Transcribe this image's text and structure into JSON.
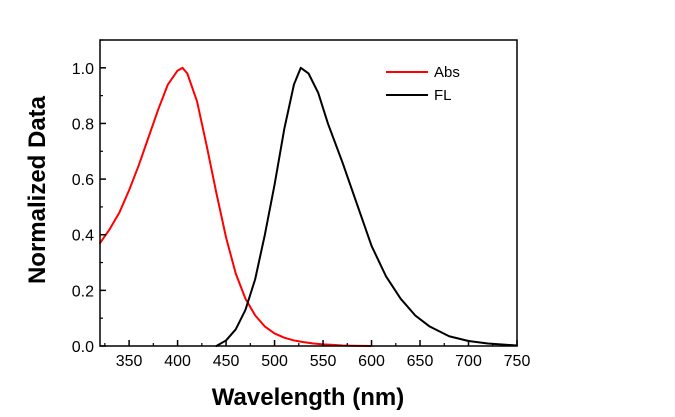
{
  "chart_data": {
    "type": "line",
    "xlabel": "Wavelength (nm)",
    "ylabel": "Normalized Data",
    "xlim": [
      320,
      750
    ],
    "ylim": [
      0.0,
      1.1
    ],
    "x_ticks": [
      350,
      400,
      450,
      500,
      550,
      600,
      650,
      700,
      750
    ],
    "x_tick_labels": [
      "350",
      "400",
      "450",
      "500",
      "550",
      "600",
      "650",
      "700",
      "750"
    ],
    "y_ticks": [
      0.0,
      0.2,
      0.4,
      0.6,
      0.8,
      1.0
    ],
    "y_tick_labels": [
      "0.0",
      "0.2",
      "0.4",
      "0.6",
      "0.8",
      "1.0"
    ],
    "grid": false,
    "legend_position": "top-right",
    "series": [
      {
        "name": "Abs",
        "color": "#ff0000",
        "points": [
          [
            320,
            0.37
          ],
          [
            330,
            0.42
          ],
          [
            340,
            0.48
          ],
          [
            350,
            0.56
          ],
          [
            360,
            0.65
          ],
          [
            370,
            0.75
          ],
          [
            380,
            0.85
          ],
          [
            390,
            0.94
          ],
          [
            400,
            0.99
          ],
          [
            405,
            1.0
          ],
          [
            410,
            0.98
          ],
          [
            420,
            0.88
          ],
          [
            430,
            0.72
          ],
          [
            440,
            0.55
          ],
          [
            450,
            0.39
          ],
          [
            460,
            0.26
          ],
          [
            470,
            0.17
          ],
          [
            480,
            0.11
          ],
          [
            490,
            0.07
          ],
          [
            500,
            0.045
          ],
          [
            510,
            0.03
          ],
          [
            520,
            0.02
          ],
          [
            530,
            0.014
          ],
          [
            540,
            0.009
          ],
          [
            550,
            0.006
          ],
          [
            560,
            0.004
          ],
          [
            570,
            0.002
          ],
          [
            580,
            0.001
          ],
          [
            600,
            0.0
          ]
        ]
      },
      {
        "name": "FL",
        "color": "#000000",
        "points": [
          [
            440,
            0.0
          ],
          [
            450,
            0.02
          ],
          [
            460,
            0.06
          ],
          [
            470,
            0.13
          ],
          [
            480,
            0.24
          ],
          [
            490,
            0.4
          ],
          [
            500,
            0.58
          ],
          [
            510,
            0.78
          ],
          [
            520,
            0.94
          ],
          [
            527,
            1.0
          ],
          [
            535,
            0.98
          ],
          [
            545,
            0.91
          ],
          [
            555,
            0.8
          ],
          [
            570,
            0.66
          ],
          [
            585,
            0.51
          ],
          [
            600,
            0.36
          ],
          [
            615,
            0.25
          ],
          [
            630,
            0.17
          ],
          [
            645,
            0.11
          ],
          [
            660,
            0.07
          ],
          [
            680,
            0.035
          ],
          [
            700,
            0.018
          ],
          [
            720,
            0.009
          ],
          [
            740,
            0.004
          ],
          [
            750,
            0.002
          ]
        ]
      }
    ]
  }
}
